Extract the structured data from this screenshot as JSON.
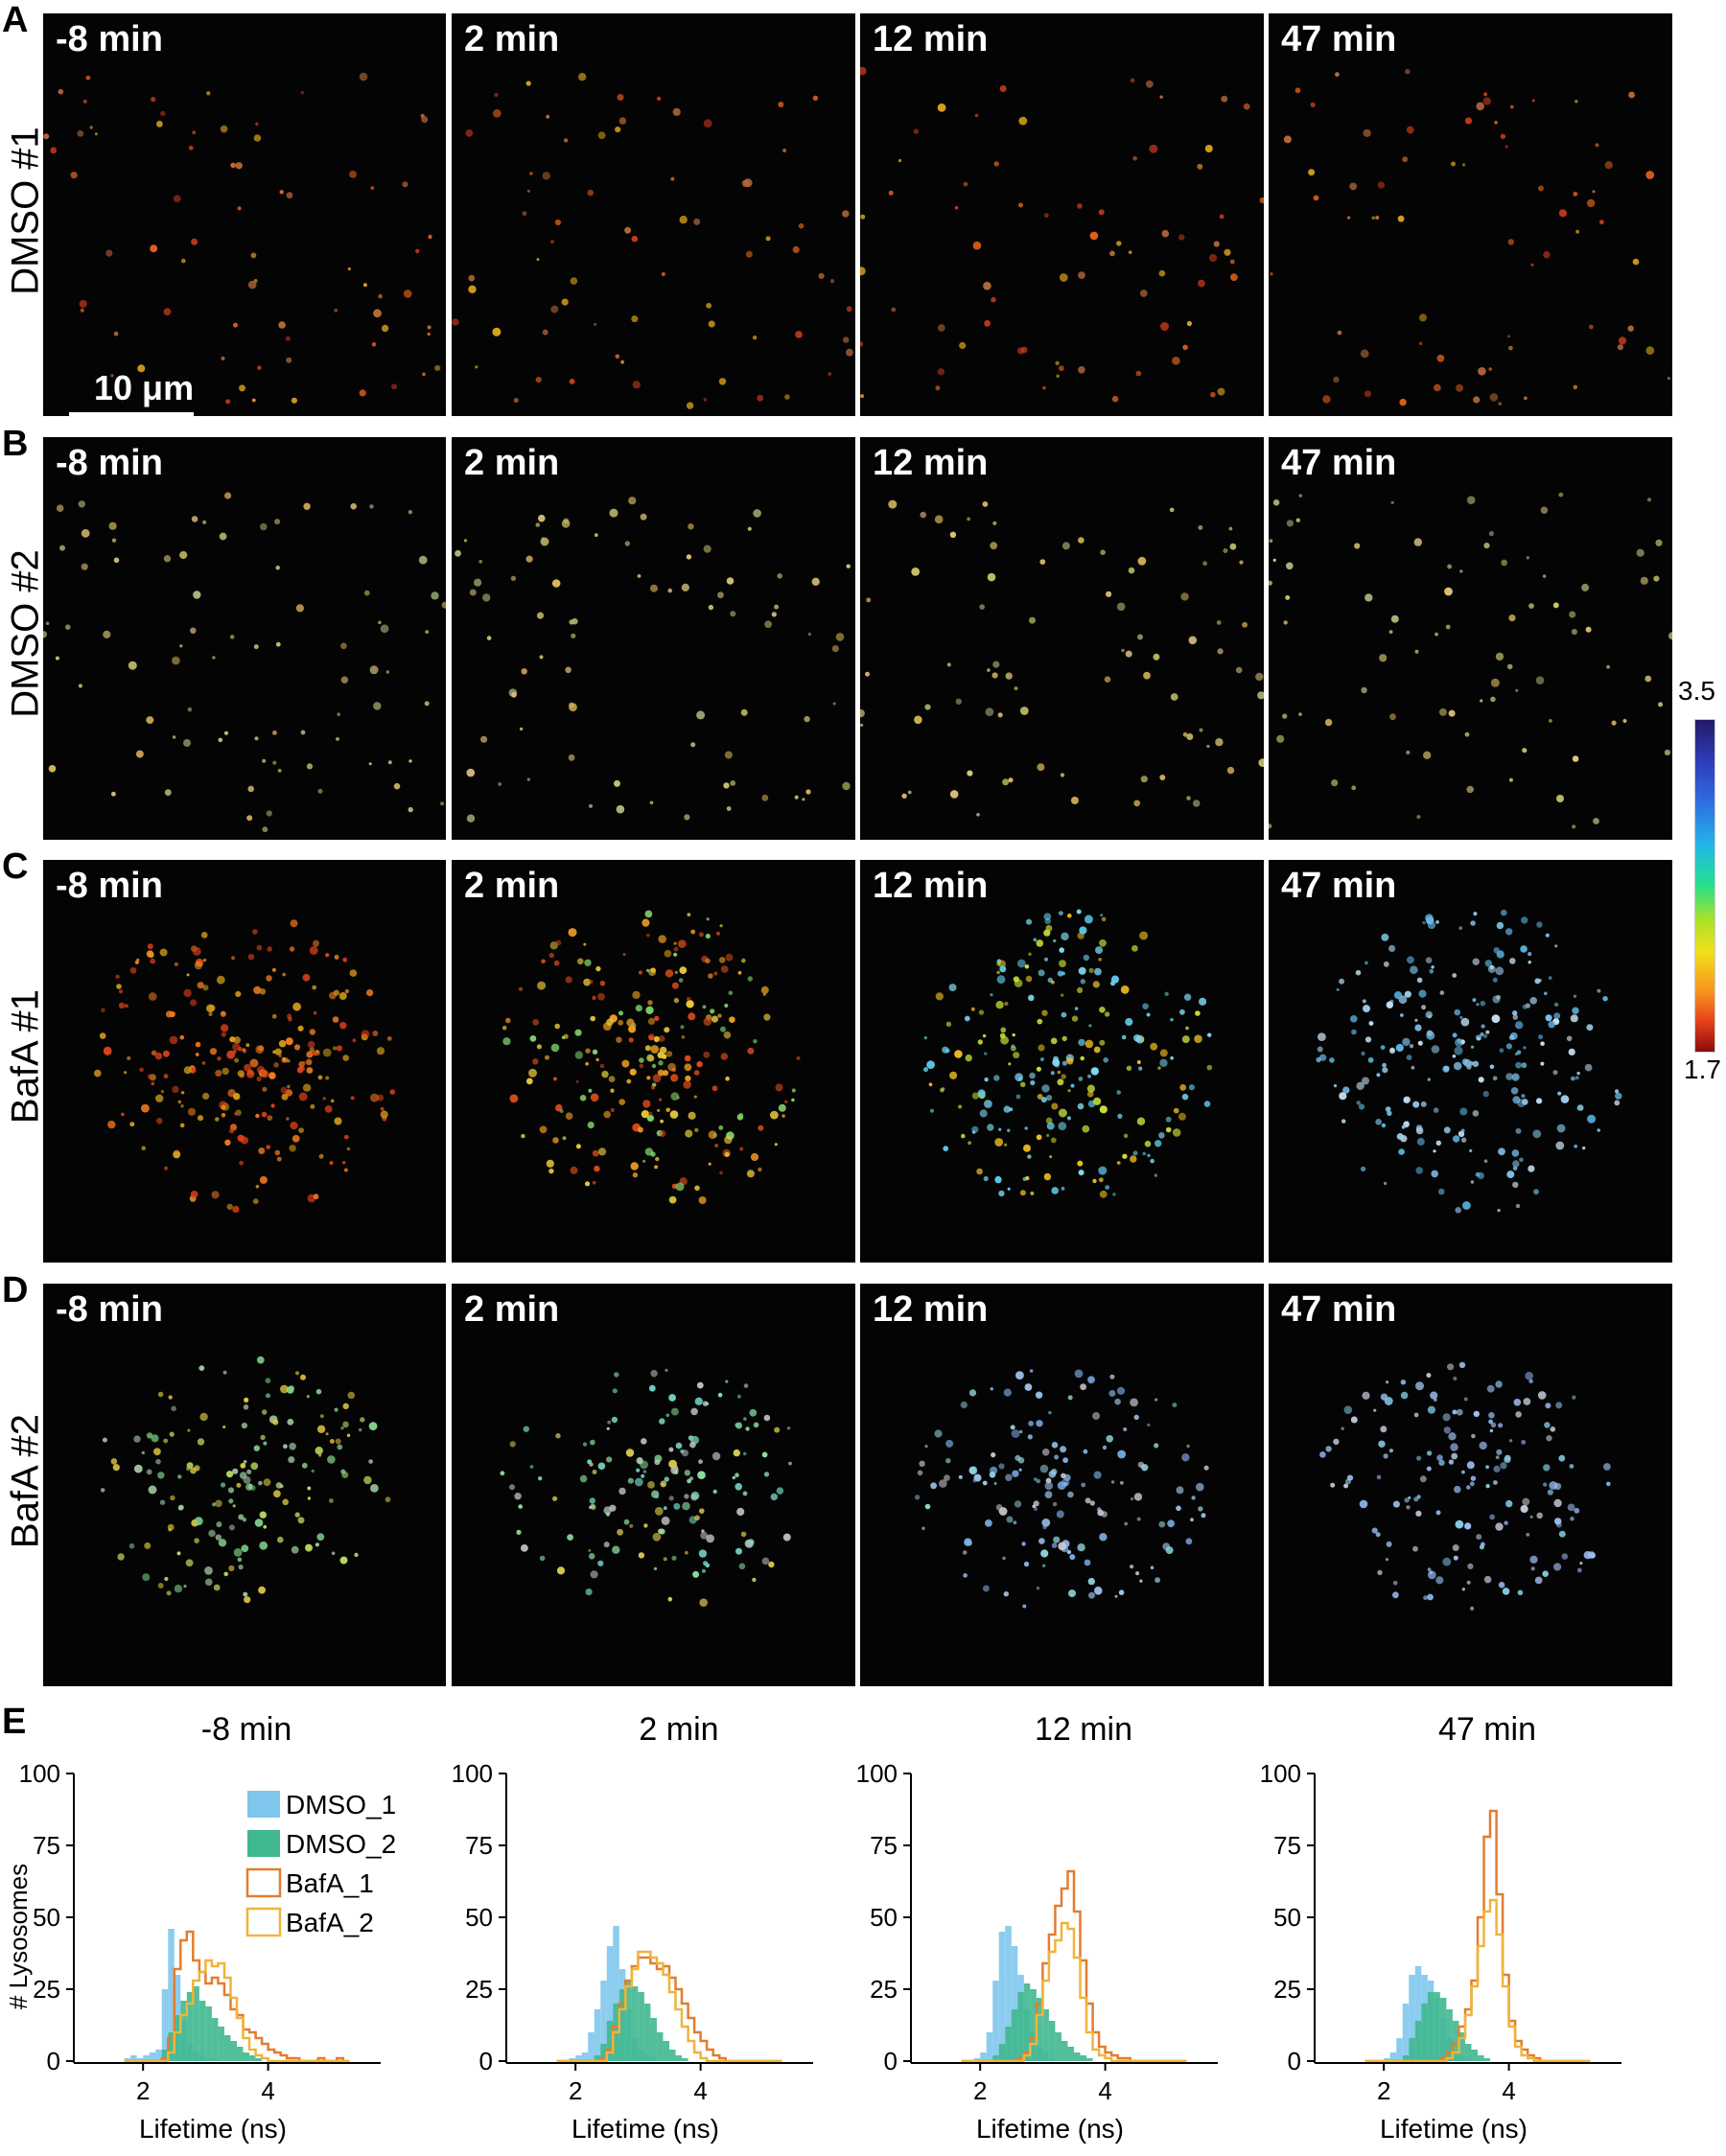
{
  "panels": {
    "A": {
      "letter": "A",
      "row_label": "DMSO #1"
    },
    "B": {
      "letter": "B",
      "row_label": "DMSO #2"
    },
    "C": {
      "letter": "C",
      "row_label": "BafA #1"
    },
    "D": {
      "letter": "D",
      "row_label": "BafA #2"
    },
    "E": {
      "letter": "E"
    }
  },
  "time_labels": [
    "-8 min",
    "2 min",
    "12 min",
    "47 min"
  ],
  "scale_bar": {
    "label": "10 μm"
  },
  "colorbar": {
    "max_label": "3.5",
    "min_label": "1.7",
    "colors": [
      "#241a66",
      "#2d3ab8",
      "#22b7e8",
      "#26e08a",
      "#f2df1c",
      "#f79320",
      "#8c0a0a"
    ]
  },
  "histogram_legend": {
    "DMSO_1": {
      "label": "DMSO_1",
      "color": "#7fc6ec"
    },
    "DMSO_2": {
      "label": "DMSO_2",
      "color": "#3fb88f"
    },
    "BafA_1": {
      "label": "BafA_1",
      "color": "#e27d30"
    },
    "BafA_2": {
      "label": "BafA_2",
      "color": "#f0b43a"
    }
  },
  "chart_data": [
    {
      "type": "bar",
      "title": "-8 min",
      "xlabel": "Lifetime (ns)",
      "ylabel": "# Lysosomes",
      "xlim": [
        1.2,
        5.8
      ],
      "ylim": [
        0,
        100
      ],
      "xticks": [
        2,
        4
      ],
      "yticks": [
        0,
        25,
        50,
        75,
        100
      ],
      "bin_start": 1.7,
      "bin_width": 0.1,
      "series": [
        {
          "name": "DMSO_1",
          "style": "filled",
          "values": [
            1,
            2,
            1,
            2,
            3,
            4,
            25,
            46,
            30,
            14,
            6,
            3,
            2,
            1,
            1,
            0,
            0,
            0,
            0,
            0,
            0,
            0,
            0,
            0,
            0,
            0,
            0,
            0,
            0,
            0,
            0,
            0,
            0,
            0,
            0,
            0
          ]
        },
        {
          "name": "DMSO_2",
          "style": "filled",
          "values": [
            0,
            0,
            0,
            0,
            0,
            0,
            4,
            10,
            16,
            21,
            24,
            26,
            21,
            19,
            15,
            12,
            9,
            7,
            5,
            3,
            2,
            1,
            0,
            0,
            0,
            0,
            0,
            0,
            0,
            0,
            0,
            0,
            0,
            0,
            0,
            0
          ]
        },
        {
          "name": "BafA_1",
          "style": "step",
          "values": [
            0,
            0,
            0,
            0,
            0,
            0,
            1,
            8,
            32,
            42,
            45,
            35,
            31,
            27,
            29,
            27,
            23,
            18,
            16,
            11,
            10,
            8,
            6,
            4,
            3,
            2,
            1,
            1,
            0,
            0,
            0,
            1,
            0,
            0,
            1,
            0
          ]
        },
        {
          "name": "BafA_2",
          "style": "step",
          "values": [
            0,
            0,
            0,
            0,
            0,
            0,
            0,
            3,
            10,
            16,
            20,
            28,
            31,
            35,
            33,
            34,
            29,
            22,
            15,
            8,
            4,
            2,
            1,
            0,
            0,
            0,
            0,
            0,
            0,
            0,
            0,
            0,
            0,
            0,
            0,
            0
          ]
        }
      ]
    },
    {
      "type": "bar",
      "title": "2 min",
      "xlabel": "Lifetime (ns)",
      "ylabel": "# Lysosomes",
      "xlim": [
        1.2,
        5.8
      ],
      "ylim": [
        0,
        100
      ],
      "xticks": [
        2,
        4
      ],
      "yticks": [
        0,
        25,
        50,
        75,
        100
      ],
      "bin_start": 1.7,
      "bin_width": 0.1,
      "series": [
        {
          "name": "DMSO_1",
          "style": "filled",
          "values": [
            0,
            0,
            1,
            2,
            3,
            10,
            18,
            28,
            40,
            47,
            32,
            18,
            8,
            4,
            2,
            1,
            0,
            0,
            0,
            0,
            0,
            0,
            0,
            0,
            0,
            0,
            0,
            0,
            0,
            0,
            0,
            0,
            0,
            0,
            0,
            0
          ]
        },
        {
          "name": "DMSO_2",
          "style": "filled",
          "values": [
            0,
            0,
            0,
            0,
            0,
            0,
            2,
            6,
            14,
            20,
            25,
            28,
            26,
            24,
            20,
            15,
            10,
            7,
            4,
            2,
            1,
            0,
            0,
            0,
            0,
            0,
            0,
            0,
            0,
            0,
            0,
            0,
            0,
            0,
            0,
            0
          ]
        },
        {
          "name": "BafA_1",
          "style": "step",
          "values": [
            0,
            0,
            0,
            0,
            0,
            0,
            0,
            1,
            4,
            12,
            20,
            28,
            33,
            36,
            36,
            34,
            32,
            33,
            29,
            25,
            20,
            15,
            10,
            7,
            4,
            2,
            1,
            0,
            0,
            0,
            0,
            0,
            0,
            0,
            0,
            0
          ]
        },
        {
          "name": "BafA_2",
          "style": "step",
          "values": [
            0,
            0,
            0,
            0,
            0,
            0,
            0,
            0,
            3,
            10,
            18,
            26,
            32,
            38,
            38,
            36,
            34,
            30,
            24,
            18,
            12,
            7,
            3,
            1,
            0,
            0,
            0,
            0,
            0,
            0,
            0,
            0,
            0,
            0,
            0,
            0
          ]
        }
      ]
    },
    {
      "type": "bar",
      "title": "12 min",
      "xlabel": "Lifetime (ns)",
      "ylabel": "# Lysosomes",
      "xlim": [
        1.2,
        5.8
      ],
      "ylim": [
        0,
        100
      ],
      "xticks": [
        2,
        4
      ],
      "yticks": [
        0,
        25,
        50,
        75,
        100
      ],
      "bin_start": 1.7,
      "bin_width": 0.1,
      "series": [
        {
          "name": "DMSO_1",
          "style": "filled",
          "values": [
            0,
            0,
            1,
            3,
            10,
            28,
            45,
            47,
            40,
            30,
            18,
            10,
            5,
            3,
            1,
            0,
            0,
            0,
            0,
            0,
            0,
            0,
            0,
            0,
            0,
            0,
            0,
            0,
            0,
            0,
            0,
            0,
            0,
            0,
            0,
            0
          ]
        },
        {
          "name": "DMSO_2",
          "style": "filled",
          "values": [
            0,
            0,
            0,
            0,
            0,
            2,
            6,
            12,
            18,
            24,
            27,
            25,
            22,
            18,
            14,
            10,
            7,
            5,
            3,
            2,
            1,
            0,
            0,
            0,
            0,
            0,
            0,
            0,
            0,
            0,
            0,
            0,
            0,
            0,
            0,
            0
          ]
        },
        {
          "name": "BafA_1",
          "style": "step",
          "values": [
            0,
            0,
            0,
            0,
            0,
            0,
            0,
            0,
            0,
            1,
            3,
            8,
            20,
            34,
            44,
            54,
            60,
            66,
            52,
            35,
            20,
            10,
            5,
            3,
            2,
            1,
            1,
            0,
            0,
            0,
            0,
            0,
            0,
            0,
            0,
            0
          ]
        },
        {
          "name": "BafA_2",
          "style": "step",
          "values": [
            0,
            0,
            0,
            0,
            0,
            0,
            0,
            0,
            0,
            0,
            2,
            6,
            16,
            28,
            38,
            42,
            48,
            46,
            36,
            22,
            10,
            4,
            2,
            1,
            0,
            0,
            0,
            0,
            0,
            0,
            0,
            0,
            0,
            0,
            0,
            0
          ]
        }
      ]
    },
    {
      "type": "bar",
      "title": "47 min",
      "xlabel": "Lifetime (ns)",
      "ylabel": "# Lysosomes",
      "xlim": [
        1.2,
        5.8
      ],
      "ylim": [
        0,
        100
      ],
      "xticks": [
        2,
        4
      ],
      "yticks": [
        0,
        25,
        50,
        75,
        100
      ],
      "bin_start": 1.7,
      "bin_width": 0.1,
      "series": [
        {
          "name": "DMSO_1",
          "style": "filled",
          "values": [
            0,
            0,
            0,
            1,
            3,
            8,
            20,
            30,
            33,
            30,
            28,
            22,
            15,
            8,
            4,
            2,
            1,
            0,
            0,
            0,
            0,
            0,
            0,
            0,
            0,
            0,
            0,
            0,
            0,
            0,
            0,
            0,
            0,
            0,
            0,
            0
          ]
        },
        {
          "name": "DMSO_2",
          "style": "filled",
          "values": [
            0,
            0,
            0,
            0,
            0,
            0,
            2,
            8,
            14,
            20,
            24,
            24,
            22,
            18,
            14,
            10,
            6,
            4,
            2,
            1,
            0,
            0,
            0,
            0,
            0,
            0,
            0,
            0,
            0,
            0,
            0,
            0,
            0,
            0,
            0,
            0
          ]
        },
        {
          "name": "BafA_1",
          "style": "step",
          "values": [
            0,
            0,
            0,
            0,
            0,
            0,
            0,
            0,
            0,
            0,
            0,
            0,
            1,
            3,
            6,
            12,
            18,
            28,
            50,
            78,
            87,
            58,
            30,
            14,
            7,
            4,
            2,
            1,
            0,
            0,
            0,
            0,
            0,
            0,
            0,
            0
          ]
        },
        {
          "name": "BafA_2",
          "style": "step",
          "values": [
            0,
            0,
            0,
            0,
            0,
            0,
            0,
            0,
            0,
            0,
            0,
            0,
            0,
            1,
            3,
            8,
            16,
            26,
            40,
            52,
            56,
            44,
            26,
            12,
            5,
            2,
            1,
            0,
            0,
            0,
            0,
            0,
            0,
            0,
            0,
            0
          ]
        }
      ]
    }
  ]
}
